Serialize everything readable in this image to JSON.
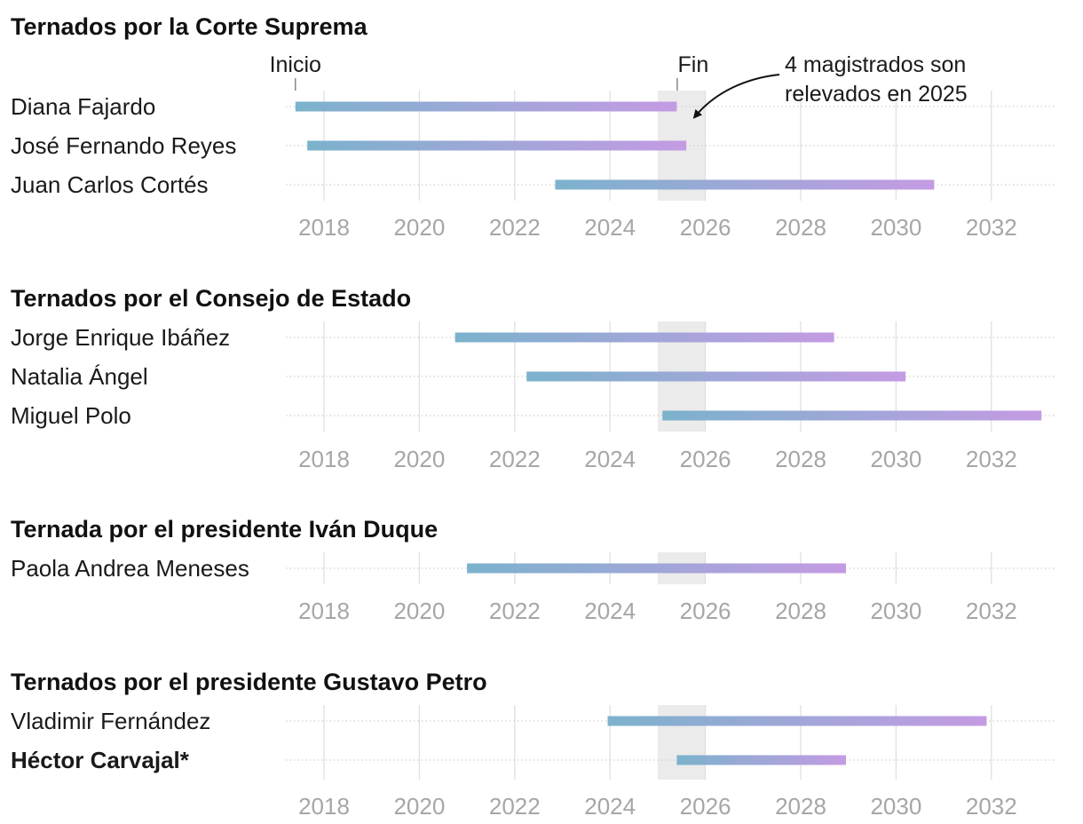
{
  "chart_data": {
    "type": "timeline",
    "axis": {
      "ticks": [
        2018,
        2020,
        2022,
        2024,
        2026,
        2028,
        2030,
        2032
      ],
      "xlim": [
        2016.8,
        2033.3
      ]
    },
    "highlight_range": [
      2025,
      2026
    ],
    "colors": {
      "bar_start": "#7bb2cc",
      "bar_end": "#c49be3",
      "highlight": "#ebebeb",
      "text": "#1a1a1a",
      "tick": "#a6a6a6"
    },
    "labels": {
      "start": "Inicio",
      "end": "Fin"
    },
    "annotation": {
      "line1": "4 magistrados son",
      "line2": "relevados en 2025"
    },
    "groups": [
      {
        "title": "Ternados por la Corte Suprema",
        "rows": [
          {
            "name": "Diana Fajardo",
            "start": 2017.4,
            "end": 2025.4,
            "bold": false
          },
          {
            "name": "José Fernando Reyes",
            "start": 2017.65,
            "end": 2025.6,
            "bold": false
          },
          {
            "name": "Juan Carlos Cortés",
            "start": 2022.85,
            "end": 2030.8,
            "bold": false
          }
        ]
      },
      {
        "title": "Ternados por el Consejo de Estado",
        "rows": [
          {
            "name": "Jorge Enrique Ibáñez",
            "start": 2020.75,
            "end": 2028.7,
            "bold": false
          },
          {
            "name": "Natalia Ángel",
            "start": 2022.25,
            "end": 2030.2,
            "bold": false
          },
          {
            "name": "Miguel Polo",
            "start": 2025.1,
            "end": 2033.05,
            "bold": false
          }
        ]
      },
      {
        "title": "Ternada por el presidente Iván Duque",
        "rows": [
          {
            "name": "Paola Andrea Meneses",
            "start": 2021.0,
            "end": 2028.95,
            "bold": false
          }
        ]
      },
      {
        "title": "Ternados por el presidente Gustavo Petro",
        "rows": [
          {
            "name": "Vladimir Fernández",
            "start": 2023.95,
            "end": 2031.9,
            "bold": false
          },
          {
            "name": "Héctor Carvajal*",
            "start": 2025.4,
            "end": 2028.95,
            "bold": true
          }
        ]
      }
    ]
  }
}
